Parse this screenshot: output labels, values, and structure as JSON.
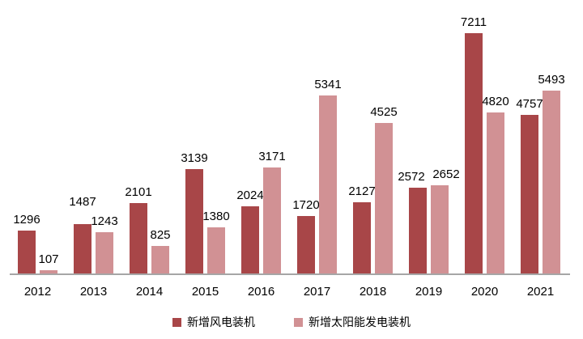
{
  "chart_data": {
    "type": "bar",
    "categories": [
      "2012",
      "2013",
      "2014",
      "2015",
      "2016",
      "2017",
      "2018",
      "2019",
      "2020",
      "2021"
    ],
    "series": [
      {
        "name": "新增风电装机",
        "key": "wind",
        "color": "#A84648",
        "values": [
          1296,
          1487,
          2101,
          3139,
          2024,
          1720,
          2127,
          2572,
          7211,
          4757
        ]
      },
      {
        "name": "新增太阳能发电装机",
        "key": "solar",
        "color": "#D19194",
        "values": [
          107,
          1243,
          825,
          1380,
          3171,
          5341,
          4525,
          2652,
          4820,
          5493
        ]
      }
    ],
    "title": "",
    "xlabel": "",
    "ylabel": "",
    "ylim": [
      0,
      7211
    ],
    "grid": false,
    "value_labels": true,
    "legend_position": "bottom",
    "axis_line_color": "#a6a6a6",
    "value_label_color": "#000000",
    "background_color": "#ffffff"
  }
}
